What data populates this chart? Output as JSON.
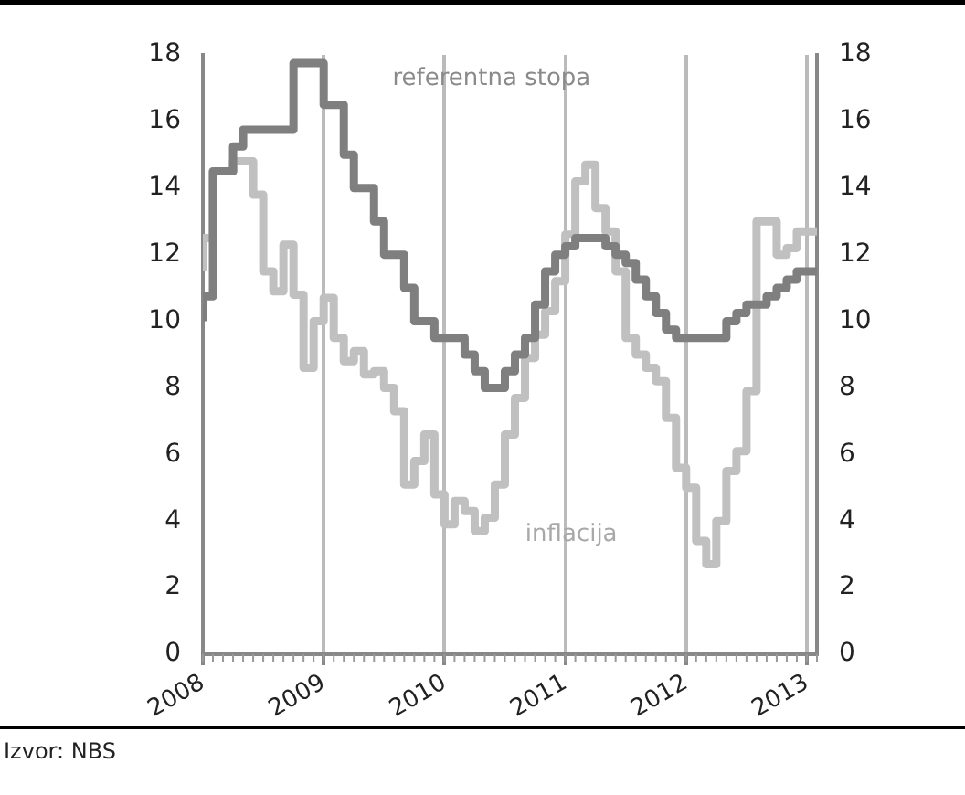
{
  "chart_data": {
    "type": "step",
    "x": [
      "2008-01",
      "2008-02",
      "2008-03",
      "2008-04",
      "2008-05",
      "2008-06",
      "2008-07",
      "2008-08",
      "2008-09",
      "2008-10",
      "2008-11",
      "2008-12",
      "2009-01",
      "2009-02",
      "2009-03",
      "2009-04",
      "2009-05",
      "2009-06",
      "2009-07",
      "2009-08",
      "2009-09",
      "2009-10",
      "2009-11",
      "2009-12",
      "2010-01",
      "2010-02",
      "2010-03",
      "2010-04",
      "2010-05",
      "2010-06",
      "2010-07",
      "2010-08",
      "2010-09",
      "2010-10",
      "2010-11",
      "2010-12",
      "2011-01",
      "2011-02",
      "2011-03",
      "2011-04",
      "2011-05",
      "2011-06",
      "2011-07",
      "2011-08",
      "2011-09",
      "2011-10",
      "2011-11",
      "2011-12",
      "2012-01",
      "2012-02",
      "2012-03",
      "2012-04",
      "2012-05",
      "2012-06",
      "2012-07",
      "2012-08",
      "2012-09",
      "2012-10",
      "2012-11",
      "2012-12",
      "2013-01",
      "2013-02"
    ],
    "series": [
      {
        "name": "referentna stopa",
        "color": "#7f7f7f",
        "values": [
          10,
          10.75,
          14.5,
          14.5,
          15.25,
          15.75,
          15.75,
          15.75,
          15.75,
          15.75,
          17.75,
          17.75,
          17.75,
          16.5,
          16.5,
          15,
          14,
          14,
          13,
          12,
          12,
          11,
          10,
          10,
          9.5,
          9.5,
          9.5,
          9,
          8.5,
          8,
          8,
          8.5,
          9,
          9.5,
          10.5,
          11.5,
          12,
          12.25,
          12.5,
          12.5,
          12.5,
          12.25,
          12,
          11.75,
          11.25,
          10.75,
          10.25,
          9.75,
          9.5,
          9.5,
          9.5,
          9.5,
          9.5,
          10,
          10.25,
          10.5,
          10.5,
          10.75,
          11,
          11.25,
          11.5,
          11.5
        ]
      },
      {
        "name": "inflacija",
        "color": "#c0c0c0",
        "values": [
          11.5,
          12.5,
          14.5,
          14.5,
          14.8,
          14.8,
          13.8,
          11.5,
          10.9,
          12.3,
          10.8,
          8.6,
          10,
          10.7,
          9.5,
          8.8,
          9.1,
          8.4,
          8.5,
          8,
          7.3,
          5.1,
          5.8,
          6.6,
          4.8,
          3.9,
          4.6,
          4.3,
          3.7,
          4.1,
          5.1,
          6.6,
          7.7,
          8.9,
          9.6,
          10.3,
          11.2,
          12.6,
          14.2,
          14.7,
          13.4,
          12.7,
          11.5,
          9.5,
          9,
          8.6,
          8.2,
          7.1,
          5.6,
          5,
          3.4,
          2.7,
          4,
          5.5,
          6.1,
          7.9,
          13,
          13,
          12,
          12.2,
          12.7,
          12.7
        ]
      }
    ],
    "xlim": [
      "2008-01",
      "2013-02"
    ],
    "xticks": [
      "2008",
      "2009",
      "2010",
      "2011",
      "2012",
      "2013"
    ],
    "ylim": [
      0,
      18
    ],
    "yticks": [
      0,
      2,
      4,
      6,
      8,
      10,
      12,
      14,
      16,
      18
    ],
    "y2lim": [
      0,
      18
    ],
    "y2ticks": [
      0,
      2,
      4,
      6,
      8,
      10,
      12,
      14,
      16,
      18
    ],
    "grid": "x",
    "legend": false,
    "marker": "none",
    "line_style": "solid",
    "annotations": [
      "Izvor: NBS"
    ]
  }
}
